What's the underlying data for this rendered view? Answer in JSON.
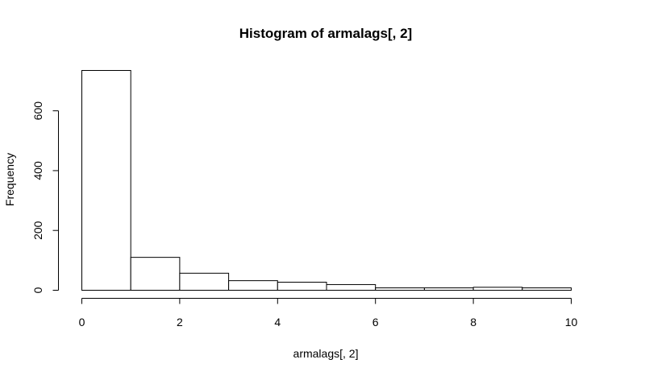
{
  "chart_data": {
    "type": "bar",
    "title": "Histogram of armalags[, 2]",
    "xlabel": "armalags[, 2]",
    "ylabel": "Frequency",
    "bins": [
      {
        "x0": 0,
        "x1": 1,
        "count": 735
      },
      {
        "x0": 1,
        "x1": 2,
        "count": 110
      },
      {
        "x0": 2,
        "x1": 3,
        "count": 57
      },
      {
        "x0": 3,
        "x1": 4,
        "count": 32
      },
      {
        "x0": 4,
        "x1": 5,
        "count": 27
      },
      {
        "x0": 5,
        "x1": 6,
        "count": 19
      },
      {
        "x0": 6,
        "x1": 7,
        "count": 8
      },
      {
        "x0": 7,
        "x1": 8,
        "count": 8
      },
      {
        "x0": 8,
        "x1": 9,
        "count": 10
      },
      {
        "x0": 9,
        "x1": 10,
        "count": 8
      }
    ],
    "xlim": [
      0,
      10
    ],
    "ylim": [
      0,
      735
    ],
    "xticks": [
      0,
      2,
      4,
      6,
      8,
      10
    ],
    "yticks": [
      0,
      200,
      400,
      600
    ],
    "grid": false,
    "legend": "none"
  }
}
